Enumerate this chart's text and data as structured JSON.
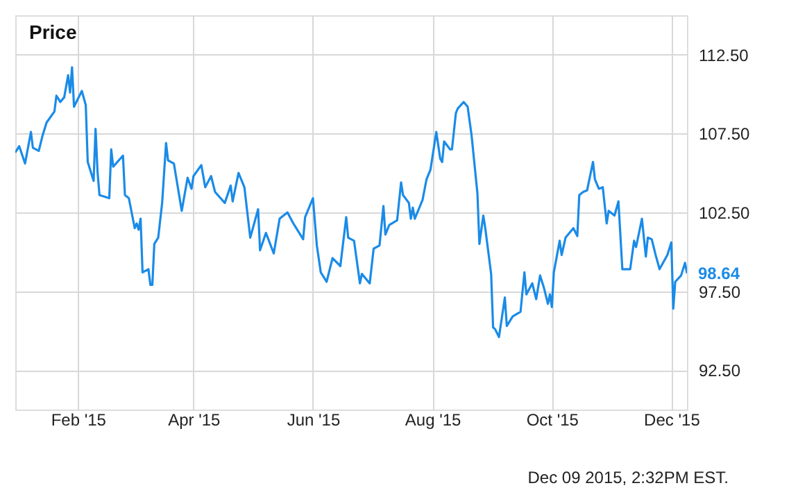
{
  "chart_data": {
    "type": "line",
    "title": "Price",
    "x": [
      "2014-12-31",
      "2015-01-02",
      "2015-01-05",
      "2015-01-08",
      "2015-01-09",
      "2015-01-12",
      "2015-01-14",
      "2015-01-16",
      "2015-01-20",
      "2015-01-21",
      "2015-01-23",
      "2015-01-25",
      "2015-01-27",
      "2015-01-28",
      "2015-01-29",
      "2015-01-30",
      "2015-02-03",
      "2015-02-05",
      "2015-02-06",
      "2015-02-09",
      "2015-02-10",
      "2015-02-11",
      "2015-02-12",
      "2015-02-17",
      "2015-02-18",
      "2015-02-19",
      "2015-02-24",
      "2015-02-25",
      "2015-02-27",
      "2015-03-02",
      "2015-03-03",
      "2015-03-04",
      "2015-03-05",
      "2015-03-06",
      "2015-03-09",
      "2015-03-10",
      "2015-03-11",
      "2015-03-12",
      "2015-03-14",
      "2015-03-16",
      "2015-03-18",
      "2015-03-19",
      "2015-03-22",
      "2015-03-26",
      "2015-03-29",
      "2015-03-31",
      "2015-04-01",
      "2015-04-05",
      "2015-04-07",
      "2015-04-10",
      "2015-04-12",
      "2015-04-17",
      "2015-04-20",
      "2015-04-21",
      "2015-04-24",
      "2015-04-27",
      "2015-04-30",
      "2015-05-04",
      "2015-05-05",
      "2015-05-08",
      "2015-05-12",
      "2015-05-15",
      "2015-05-19",
      "2015-05-22",
      "2015-05-27",
      "2015-05-28",
      "2015-06-01",
      "2015-06-03",
      "2015-06-05",
      "2015-06-08",
      "2015-06-11",
      "2015-06-15",
      "2015-06-18",
      "2015-06-19",
      "2015-06-22",
      "2015-06-25",
      "2015-06-26",
      "2015-06-30",
      "2015-07-02",
      "2015-07-05",
      "2015-07-07",
      "2015-07-08",
      "2015-07-10",
      "2015-07-14",
      "2015-07-16",
      "2015-07-17",
      "2015-07-20",
      "2015-07-21",
      "2015-07-22",
      "2015-07-23",
      "2015-07-27",
      "2015-07-29",
      "2015-07-31",
      "2015-08-03",
      "2015-08-05",
      "2015-08-06",
      "2015-08-07",
      "2015-08-10",
      "2015-08-11",
      "2015-08-13",
      "2015-08-14",
      "2015-08-17",
      "2015-08-19",
      "2015-08-21",
      "2015-08-24",
      "2015-08-25",
      "2015-08-27",
      "2015-08-28",
      "2015-08-31",
      "2015-09-01",
      "2015-09-02",
      "2015-09-04",
      "2015-09-07",
      "2015-09-08",
      "2015-09-11",
      "2015-09-15",
      "2015-09-17",
      "2015-09-18",
      "2015-09-21",
      "2015-09-23",
      "2015-09-25",
      "2015-09-27",
      "2015-09-29",
      "2015-09-30",
      "2015-10-01",
      "2015-10-02",
      "2015-10-05",
      "2015-10-06",
      "2015-10-08",
      "2015-10-12",
      "2015-10-14",
      "2015-10-15",
      "2015-10-17",
      "2015-10-19",
      "2015-10-22",
      "2015-10-23",
      "2015-10-25",
      "2015-10-27",
      "2015-10-29",
      "2015-10-30",
      "2015-11-02",
      "2015-11-04",
      "2015-11-06",
      "2015-11-10",
      "2015-11-12",
      "2015-11-13",
      "2015-11-16",
      "2015-11-18",
      "2015-11-19",
      "2015-11-21",
      "2015-11-23",
      "2015-11-25",
      "2015-11-29",
      "2015-12-01",
      "2015-12-02",
      "2015-12-03",
      "2015-12-06",
      "2015-12-08",
      "2015-12-09"
    ],
    "series": [
      {
        "color": "#1a8be8",
        "values": [
          106.3,
          106.7,
          105.6,
          107.6,
          106.6,
          106.4,
          107.4,
          108.2,
          108.9,
          109.9,
          109.5,
          109.8,
          111.2,
          110.1,
          111.7,
          109.2,
          110.2,
          109.3,
          105.7,
          104.5,
          107.8,
          105.1,
          103.6,
          103.4,
          106.5,
          105.4,
          106.1,
          103.6,
          103.4,
          101.5,
          101.8,
          101.4,
          102.1,
          98.7,
          98.9,
          97.9,
          97.9,
          100.5,
          100.9,
          103.1,
          106.9,
          105.8,
          105.6,
          102.6,
          104.7,
          104.0,
          104.8,
          105.5,
          104.1,
          104.8,
          103.8,
          103.1,
          104.2,
          103.2,
          105.0,
          104.1,
          100.9,
          102.7,
          100.1,
          101.2,
          99.9,
          102.1,
          102.5,
          101.8,
          100.8,
          102.2,
          103.4,
          100.4,
          98.7,
          98.1,
          99.6,
          99.1,
          102.2,
          100.9,
          100.7,
          98.0,
          98.6,
          98.0,
          100.2,
          100.4,
          102.9,
          101.1,
          101.7,
          102.0,
          104.4,
          103.6,
          103.1,
          102.1,
          102.8,
          102.1,
          103.3,
          104.6,
          105.2,
          107.6,
          105.9,
          105.7,
          107.0,
          106.5,
          106.5,
          108.8,
          109.1,
          109.5,
          109.2,
          107.4,
          103.7,
          100.5,
          102.3,
          101.5,
          98.6,
          95.2,
          95.1,
          94.6,
          97.1,
          95.3,
          95.9,
          96.2,
          98.7,
          97.3,
          98.0,
          97.0,
          98.5,
          97.7,
          96.7,
          97.3,
          96.5,
          98.7,
          100.7,
          99.8,
          100.9,
          101.5,
          101.0,
          103.6,
          103.8,
          103.9,
          105.7,
          104.6,
          104.0,
          104.1,
          101.8,
          102.6,
          102.3,
          103.2,
          98.9,
          98.9,
          100.7,
          100.3,
          102.1,
          99.7,
          100.9,
          100.8,
          99.8,
          98.9,
          99.8,
          100.6,
          96.4,
          98.1,
          98.5,
          99.3,
          98.64
        ]
      }
    ],
    "xlim": [
      "2014-12-31",
      "2015-12-09"
    ],
    "xticks": [
      {
        "value": "2015-02-01",
        "label": "Feb '15"
      },
      {
        "value": "2015-04-01",
        "label": "Apr '15"
      },
      {
        "value": "2015-06-01",
        "label": "Jun '15"
      },
      {
        "value": "2015-08-01",
        "label": "Aug '15"
      },
      {
        "value": "2015-10-01",
        "label": "Oct '15"
      },
      {
        "value": "2015-12-01",
        "label": "Dec '15"
      }
    ],
    "ylim": [
      90,
      115
    ],
    "yticks": [
      {
        "value": 92.5,
        "label": "92.50"
      },
      {
        "value": 97.5,
        "label": "97.50"
      },
      {
        "value": 102.5,
        "label": "102.50"
      },
      {
        "value": 107.5,
        "label": "107.50"
      },
      {
        "value": 112.5,
        "label": "112.50"
      }
    ],
    "grid": true,
    "annotations": [
      {
        "text": "98.64",
        "x": "2015-12-09",
        "y": 98.64
      },
      "Dec 09 2015, 2:32PM EST."
    ]
  }
}
